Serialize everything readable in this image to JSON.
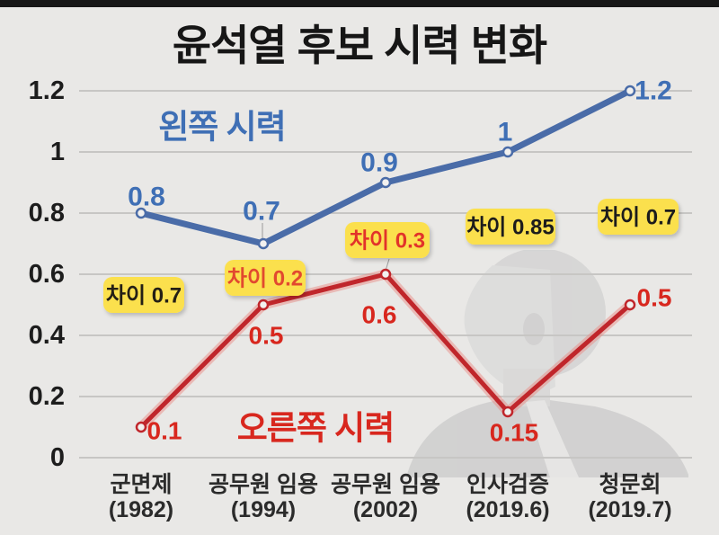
{
  "page": {
    "background_color": "#e9e8e6",
    "top_bar_color": "#171717"
  },
  "chart_data": {
    "type": "line",
    "title": "윤석열 후보 시력 변화",
    "categories": [
      {
        "label": "군면제",
        "year": "(1982)"
      },
      {
        "label": "공무원 임용",
        "year": "(1994)"
      },
      {
        "label": "공무원 임용",
        "year": "(2002)"
      },
      {
        "label": "인사검증",
        "year": "(2019.6)"
      },
      {
        "label": "청문회",
        "year": "(2019.7)"
      }
    ],
    "y_axis": {
      "min": 0,
      "max": 1.2,
      "grid": true,
      "ticks": [
        {
          "v": 1.2,
          "label": "1.2"
        },
        {
          "v": 1.0,
          "label": "1"
        },
        {
          "v": 0.8,
          "label": "0.8"
        },
        {
          "v": 0.6,
          "label": "0.6"
        },
        {
          "v": 0.4,
          "label": "0.4"
        },
        {
          "v": 0.2,
          "label": "0.2"
        },
        {
          "v": 0.0,
          "label": "0"
        }
      ]
    },
    "series": [
      {
        "name": "왼쪽 시력",
        "color": "#4a6ca8",
        "label_color": "#3f6fb5",
        "values": [
          0.8,
          0.7,
          0.9,
          1.0,
          1.2
        ],
        "value_labels": [
          "0.8",
          "0.7",
          "0.9",
          "1",
          "1.2"
        ]
      },
      {
        "name": "오른쪽 시력",
        "color": "#c0262b",
        "label_color": "#d8271e",
        "values": [
          0.1,
          0.5,
          0.6,
          0.15,
          0.5
        ],
        "value_labels": [
          "0.1",
          "0.5",
          "0.6",
          "0.15",
          "0.5"
        ]
      }
    ],
    "diff_badges": [
      {
        "text": "차이 0.7",
        "text_color": "#241f15"
      },
      {
        "text": "차이 0.2",
        "text_color": "#e2492f"
      },
      {
        "text": "차이 0.3",
        "text_color": "#e2332a"
      },
      {
        "text": "차이 0.85",
        "text_color": "#1c1c1c"
      },
      {
        "text": "차이 0.7",
        "text_color": "#1c1c1c"
      }
    ],
    "badge_bg_color": "#fbe04e",
    "grid_color": "#c7c6c4",
    "axis_text_color": "#1d1d1d",
    "legend_position": "inline-labels"
  }
}
